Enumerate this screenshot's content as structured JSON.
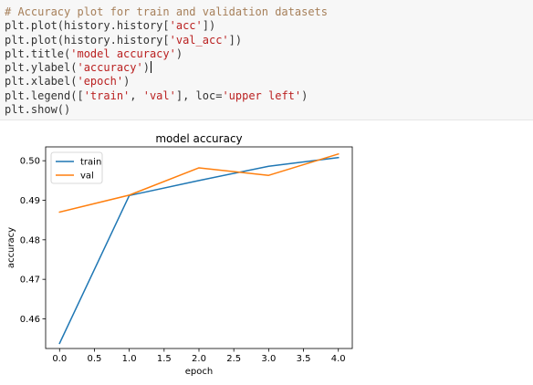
{
  "code": {
    "lines": [
      [
        {
          "t": "# Accuracy plot for train and validation datasets",
          "c": "com"
        }
      ],
      [
        {
          "t": "plt.plot(history.history[",
          "c": "def"
        },
        {
          "t": "'acc'",
          "c": "str"
        },
        {
          "t": "])",
          "c": "def"
        }
      ],
      [
        {
          "t": "plt.plot(history.history[",
          "c": "def"
        },
        {
          "t": "'val_acc'",
          "c": "str"
        },
        {
          "t": "])",
          "c": "def"
        }
      ],
      [
        {
          "t": "plt.title(",
          "c": "def"
        },
        {
          "t": "'model accuracy'",
          "c": "str"
        },
        {
          "t": ")",
          "c": "def"
        }
      ],
      [
        {
          "t": "plt.ylabel(",
          "c": "def"
        },
        {
          "t": "'accuracy'",
          "c": "str"
        },
        {
          "t": ")",
          "c": "def"
        }
      ],
      [
        {
          "t": "plt.xlabel(",
          "c": "def"
        },
        {
          "t": "'epoch'",
          "c": "str"
        },
        {
          "t": ")",
          "c": "def"
        }
      ],
      [
        {
          "t": "plt.legend([",
          "c": "def"
        },
        {
          "t": "'train'",
          "c": "str"
        },
        {
          "t": ", ",
          "c": "def"
        },
        {
          "t": "'val'",
          "c": "str"
        },
        {
          "t": "], loc=",
          "c": "def"
        },
        {
          "t": "'upper left'",
          "c": "str"
        },
        {
          "t": ")",
          "c": "def"
        }
      ],
      [
        {
          "t": "plt.show()",
          "c": "def"
        }
      ]
    ],
    "active_line": 4
  },
  "chart_data": {
    "type": "line",
    "title": "model accuracy",
    "xlabel": "epoch",
    "ylabel": "accuracy",
    "xlim": [
      -0.2,
      4.2
    ],
    "ylim": [
      0.4525,
      0.5035
    ],
    "xticks": [
      0.0,
      0.5,
      1.0,
      1.5,
      2.0,
      2.5,
      3.0,
      3.5,
      4.0
    ],
    "xtick_labels": [
      "0.0",
      "0.5",
      "1.0",
      "1.5",
      "2.0",
      "2.5",
      "3.0",
      "3.5",
      "4.0"
    ],
    "yticks": [
      0.46,
      0.47,
      0.48,
      0.49,
      0.5
    ],
    "ytick_labels": [
      "0.46",
      "0.47",
      "0.48",
      "0.49",
      "0.50"
    ],
    "legend": "upper-left",
    "grid": false,
    "series": [
      {
        "name": "train",
        "color": "#1f77b4",
        "x": [
          0,
          1,
          2,
          3,
          4
        ],
        "y": [
          0.4538,
          0.4912,
          0.495,
          0.4986,
          0.5008
        ]
      },
      {
        "name": "val",
        "color": "#ff7f0e",
        "x": [
          0,
          1,
          2,
          3,
          4
        ],
        "y": [
          0.487,
          0.4913,
          0.4982,
          0.4963,
          0.5017
        ]
      }
    ]
  }
}
